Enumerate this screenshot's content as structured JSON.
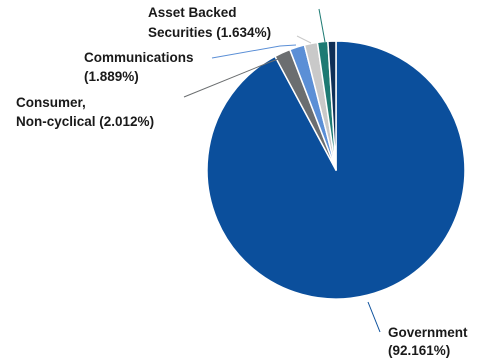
{
  "chart_data": {
    "type": "pie",
    "title": "",
    "slices": [
      {
        "label_lines": [
          "Government",
          "(92.161%)"
        ],
        "value": 92.161,
        "color": "#0b4f9c"
      },
      {
        "label_lines": [
          "Consumer,",
          "Non-cyclical (2.012%)"
        ],
        "value": 2.012,
        "color": "#6b6e70"
      },
      {
        "label_lines": [
          "Communications",
          "(1.889%)"
        ],
        "value": 1.889,
        "color": "#5b8fd6"
      },
      {
        "label_lines": [
          "Asset Backed",
          "Securities (1.634%)"
        ],
        "value": 1.634,
        "color": "#c9c9c9"
      },
      {
        "label_lines": [],
        "value": 1.3,
        "color": "#1d7a73"
      },
      {
        "label_lines": [],
        "value": 1.004,
        "color": "#0f2f57"
      }
    ]
  }
}
